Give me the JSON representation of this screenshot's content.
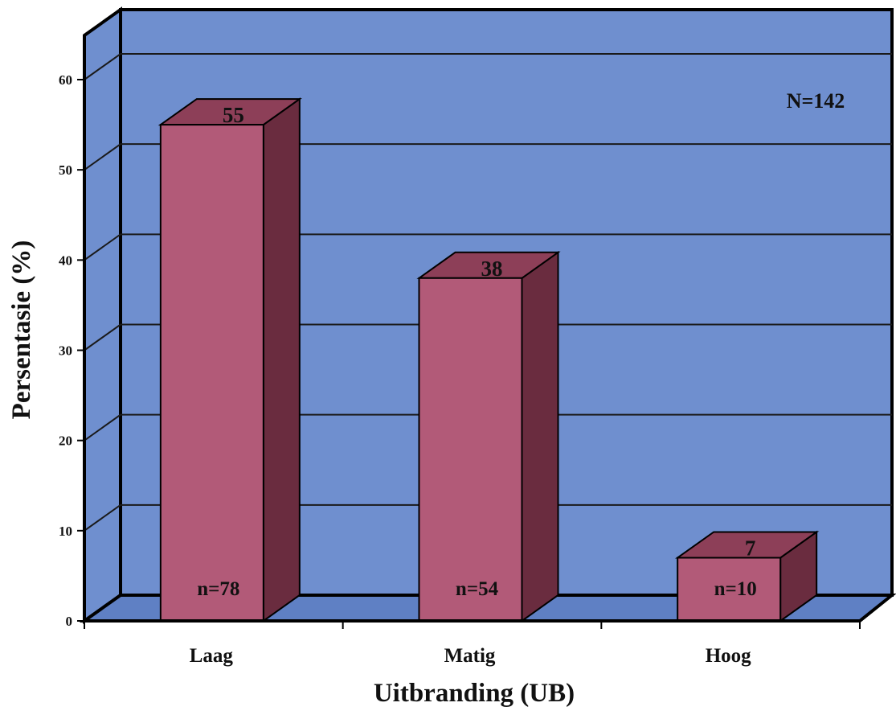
{
  "chart_data": {
    "type": "bar",
    "title": "",
    "xlabel": "Uitbranding (UB)",
    "ylabel": "Persentasie (%)",
    "categories": [
      "Laag",
      "Matig",
      "Hoog"
    ],
    "values": [
      55,
      38,
      7
    ],
    "value_labels": [
      "55",
      "38",
      "7"
    ],
    "count_labels": [
      "n=78",
      "n=54",
      "n=10"
    ],
    "annotation": "N=142",
    "ylim": [
      0,
      60
    ],
    "yticks": [
      0,
      10,
      20,
      30,
      40,
      50,
      60
    ],
    "grid": true,
    "legend": "none",
    "style": "3d"
  },
  "colors": {
    "wall": "#6f8fcf",
    "floor": "#5f80c4",
    "bar_front": "#b25a78",
    "bar_top": "#8d3f58",
    "bar_side": "#6a2c3f",
    "outline": "#000000"
  }
}
